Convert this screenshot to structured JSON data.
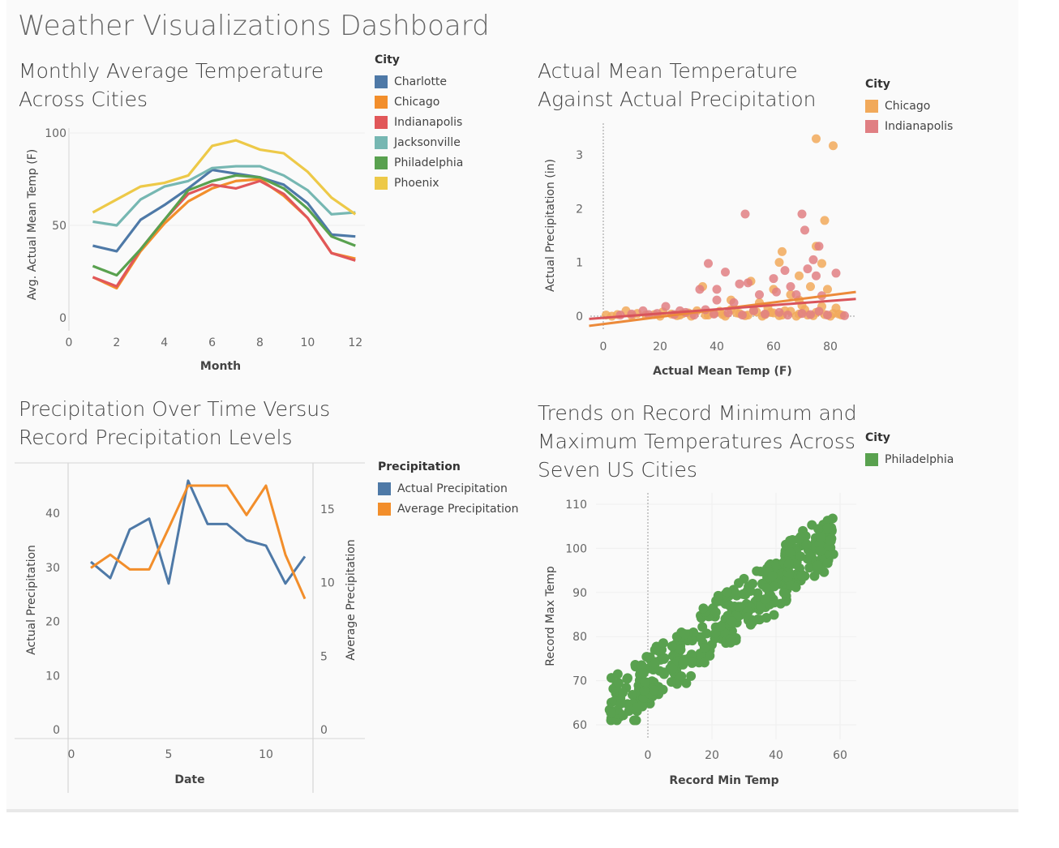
{
  "dashboard": {
    "title": "Weather Visualizations Dashboard"
  },
  "sheets": {
    "s1": {
      "title_line1": "Monthly Average Temperature",
      "title_line2": "Across Cities"
    },
    "s2": {
      "title_line1": "Actual Mean Temperature",
      "title_line2": "Against Actual Precipitation"
    },
    "s3": {
      "title_line1": "Precipitation Over Time Versus",
      "title_line2": "Record Precipitation Levels"
    },
    "s4": {
      "title_line1": "Trends on Record Minimum and",
      "title_line2": "Maximum Temperatures Across",
      "title_line3": "Seven US Cities"
    }
  },
  "legends": {
    "s1": {
      "title": "City",
      "items": [
        {
          "label": "Charlotte",
          "color": "#4e79a7"
        },
        {
          "label": "Chicago",
          "color": "#f28e2b"
        },
        {
          "label": "Indianapolis",
          "color": "#e15759"
        },
        {
          "label": "Jacksonville",
          "color": "#76b7b2"
        },
        {
          "label": "Philadelphia",
          "color": "#59a14f"
        },
        {
          "label": "Phoenix",
          "color": "#edc948"
        }
      ]
    },
    "s2": {
      "title": "City",
      "items": [
        {
          "label": "Chicago",
          "color": "#f1a95a"
        },
        {
          "label": "Indianapolis",
          "color": "#e07f83"
        }
      ]
    },
    "s3": {
      "title": "Precipitation",
      "items": [
        {
          "label": "Actual Precipitation",
          "color": "#4e79a7"
        },
        {
          "label": "Average Precipitation",
          "color": "#f28e2b"
        }
      ]
    },
    "s4": {
      "title": "City",
      "items": [
        {
          "label": "Philadelphia",
          "color": "#59a14f"
        }
      ]
    }
  },
  "chart_data": [
    {
      "id": "monthly",
      "type": "line",
      "xlabel": "Month",
      "ylabel": "Avg. Actual Mean Temp (F)",
      "xlim": [
        0,
        12.5
      ],
      "ylim": [
        0,
        100
      ],
      "xticks": [
        0,
        2,
        4,
        6,
        8,
        10,
        12
      ],
      "yticks": [
        0,
        50,
        100
      ],
      "x": [
        1,
        2,
        3,
        4,
        5,
        6,
        7,
        8,
        9,
        10,
        11,
        12
      ],
      "series": [
        {
          "name": "Charlotte",
          "color": "#4e79a7",
          "values": [
            39,
            36,
            53,
            61,
            70,
            80,
            78,
            76,
            72,
            62,
            45,
            44
          ]
        },
        {
          "name": "Chicago",
          "color": "#f28e2b",
          "values": [
            22,
            16,
            36,
            51,
            63,
            70,
            74,
            75,
            66,
            54,
            35,
            32
          ]
        },
        {
          "name": "Indianapolis",
          "color": "#e15759",
          "values": [
            22,
            17,
            37,
            53,
            67,
            72,
            70,
            74,
            67,
            54,
            35,
            31
          ]
        },
        {
          "name": "Jacksonville",
          "color": "#76b7b2",
          "values": [
            52,
            50,
            64,
            71,
            74,
            81,
            82,
            82,
            77,
            69,
            56,
            57
          ]
        },
        {
          "name": "Philadelphia",
          "color": "#59a14f",
          "values": [
            28,
            23,
            37,
            53,
            69,
            74,
            77,
            76,
            70,
            59,
            44,
            39
          ]
        },
        {
          "name": "Phoenix",
          "color": "#edc948",
          "values": [
            57,
            64,
            71,
            73,
            77,
            93,
            96,
            91,
            89,
            79,
            65,
            56
          ]
        }
      ]
    },
    {
      "id": "temp_precip",
      "type": "scatter",
      "xlabel": "Actual Mean Temp (F)",
      "ylabel": "Actual Precipitation (in)",
      "xlim": [
        -5,
        89
      ],
      "ylim": [
        -0.15,
        3.5
      ],
      "xticks": [
        0,
        20,
        40,
        60,
        80
      ],
      "yticks": [
        0,
        1,
        2,
        3
      ],
      "series": [
        {
          "name": "Chicago",
          "color": "#f1a95a",
          "points": [
            [
              75,
              3.3
            ],
            [
              81,
              3.17
            ],
            [
              78,
              1.78
            ],
            [
              63,
              1.2
            ],
            [
              75,
              1.3
            ],
            [
              62,
              1.0
            ],
            [
              77,
              0.98
            ],
            [
              69,
              0.75
            ],
            [
              52,
              0.65
            ],
            [
              73,
              0.55
            ],
            [
              60,
              0.5
            ],
            [
              79,
              0.5
            ],
            [
              35,
              0.55
            ],
            [
              45,
              0.3
            ],
            [
              66,
              0.4
            ],
            [
              55,
              0.25
            ],
            [
              69,
              0.3
            ],
            [
              70,
              0.2
            ],
            [
              82,
              0.15
            ],
            [
              58,
              0.15
            ],
            [
              1,
              0.02
            ],
            [
              5,
              0.03
            ],
            [
              8,
              0.1
            ],
            [
              12,
              0.05
            ],
            [
              15,
              0.02
            ],
            [
              18,
              0.03
            ],
            [
              21,
              0.08
            ],
            [
              24,
              0.04
            ],
            [
              27,
              0.02
            ],
            [
              30,
              0.06
            ],
            [
              33,
              0.1
            ],
            [
              36,
              0.02
            ],
            [
              39,
              0.05
            ],
            [
              42,
              0.03
            ],
            [
              45,
              0.12
            ],
            [
              48,
              0.05
            ],
            [
              51,
              0.02
            ],
            [
              54,
              0.08
            ],
            [
              57,
              0.03
            ],
            [
              60,
              0.06
            ],
            [
              63,
              0.02
            ],
            [
              66,
              0.09
            ],
            [
              69,
              0.04
            ],
            [
              72,
              0.02
            ],
            [
              75,
              0.07
            ],
            [
              78,
              0.03
            ],
            [
              81,
              0.05
            ],
            [
              84,
              0.02
            ],
            [
              3,
              0.0
            ],
            [
              10,
              0.01
            ],
            [
              20,
              0.0
            ],
            [
              26,
              0.01
            ],
            [
              31,
              0.0
            ],
            [
              37,
              0.02
            ],
            [
              43,
              0.0
            ],
            [
              50,
              0.01
            ],
            [
              56,
              0.0
            ],
            [
              62,
              0.01
            ],
            [
              68,
              0.0
            ],
            [
              74,
              0.01
            ],
            [
              80,
              0.0
            ],
            [
              83,
              0.04
            ],
            [
              77,
              0.18
            ],
            [
              71,
              0.12
            ],
            [
              64,
              0.1
            ],
            [
              59,
              0.07
            ],
            [
              53,
              0.11
            ],
            [
              47,
              0.06
            ],
            [
              41,
              0.09
            ],
            [
              28,
              0.05
            ]
          ]
        },
        {
          "name": "Indianapolis",
          "color": "#e07f83",
          "points": [
            [
              50,
              1.9
            ],
            [
              70,
              1.9
            ],
            [
              71,
              1.6
            ],
            [
              76,
              1.3
            ],
            [
              74,
              1.05
            ],
            [
              37,
              0.98
            ],
            [
              43,
              0.82
            ],
            [
              72,
              0.88
            ],
            [
              75,
              0.75
            ],
            [
              82,
              0.8
            ],
            [
              64,
              0.85
            ],
            [
              66,
              0.55
            ],
            [
              60,
              0.7
            ],
            [
              48,
              0.6
            ],
            [
              51,
              0.62
            ],
            [
              55,
              0.4
            ],
            [
              61,
              0.45
            ],
            [
              68,
              0.4
            ],
            [
              77,
              0.38
            ],
            [
              40,
              0.5
            ],
            [
              34,
              0.5
            ],
            [
              40,
              0.3
            ],
            [
              46,
              0.25
            ],
            [
              27,
              0.1
            ],
            [
              22,
              0.18
            ],
            [
              16,
              0.03
            ],
            [
              6,
              0.02
            ],
            [
              10,
              0.04
            ],
            [
              14,
              0.1
            ],
            [
              19,
              0.05
            ],
            [
              25,
              0.03
            ],
            [
              29,
              0.07
            ],
            [
              32,
              0.02
            ],
            [
              36,
              0.12
            ],
            [
              39,
              0.04
            ],
            [
              44,
              0.06
            ],
            [
              49,
              0.02
            ],
            [
              53,
              0.1
            ],
            [
              57,
              0.04
            ],
            [
              62,
              0.07
            ],
            [
              65,
              0.02
            ],
            [
              70,
              0.05
            ],
            [
              73,
              0.03
            ],
            [
              76,
              0.09
            ],
            [
              79,
              0.02
            ],
            [
              85,
              0.01
            ]
          ]
        }
      ],
      "trend_lines": [
        {
          "name": "Chicago",
          "color": "#ec8a3a",
          "from": [
            -5,
            -0.18
          ],
          "to": [
            89,
            0.45
          ]
        },
        {
          "name": "Indianapolis",
          "color": "#d9545a",
          "from": [
            -5,
            -0.05
          ],
          "to": [
            89,
            0.32
          ]
        }
      ]
    },
    {
      "id": "precip_time",
      "type": "line",
      "xlabel": "Date",
      "ylabel": "Actual Precipitation",
      "y2label": "Average Precipitation",
      "xlim": [
        0,
        13
      ],
      "ylim": [
        -2,
        48
      ],
      "y2lim": [
        -0.7,
        18.2
      ],
      "xticks": [
        0,
        5,
        10
      ],
      "yticks": [
        0,
        10,
        20,
        30,
        40
      ],
      "y2ticks": [
        0,
        5,
        10,
        15
      ],
      "x": [
        1,
        2,
        3,
        4,
        5,
        6,
        7,
        8,
        9,
        10,
        11,
        12
      ],
      "series": [
        {
          "name": "Actual Precipitation",
          "axis": "left",
          "color": "#4e79a7",
          "values": [
            31,
            28,
            37,
            39,
            27,
            46,
            38,
            38,
            35,
            34,
            27,
            32
          ]
        },
        {
          "name": "Average Precipitation",
          "axis": "right",
          "color": "#f28e2b",
          "values": [
            11.0,
            11.9,
            10.9,
            10.9,
            13.7,
            16.6,
            16.6,
            16.6,
            14.6,
            16.6,
            11.9,
            8.9
          ]
        }
      ]
    },
    {
      "id": "record_temps",
      "type": "scatter",
      "xlabel": "Record Min Temp",
      "ylabel": "Record Max Temp",
      "xlim": [
        -16,
        65
      ],
      "ylim": [
        57,
        112
      ],
      "xticks": [
        0,
        20,
        40,
        60
      ],
      "yticks": [
        60,
        70,
        80,
        90,
        100,
        110
      ],
      "series": [
        {
          "name": "Philadelphia",
          "color": "#59a14f"
        }
      ]
    }
  ]
}
